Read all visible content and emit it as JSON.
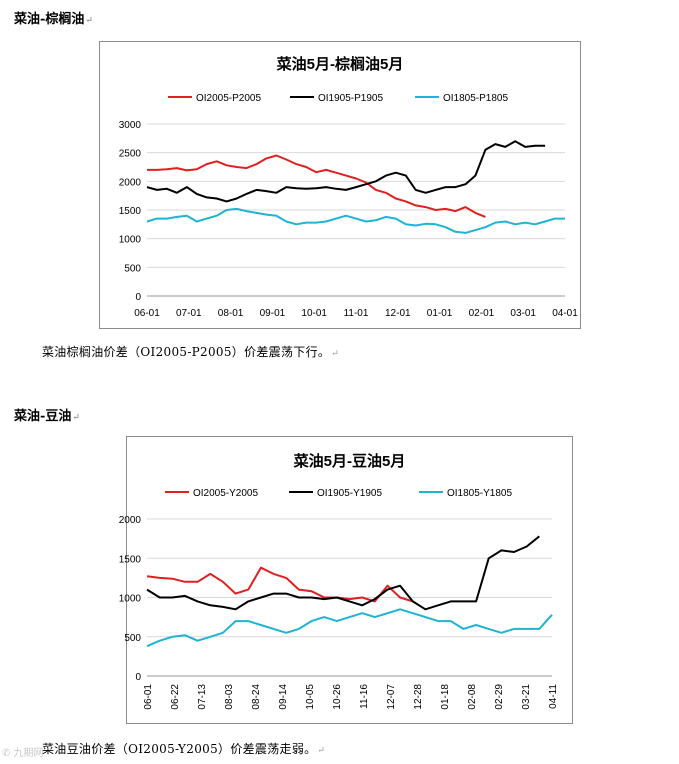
{
  "sections": [
    {
      "heading": "菜油-棕榈油",
      "paragraph": "菜油棕榈油价差（OI2005-P2005）价差震荡下行。"
    },
    {
      "heading": "菜油-豆油",
      "paragraph": "菜油豆油价差（OI2005-Y2005）价差震荡走弱。"
    }
  ],
  "paragraph_mark": "↵",
  "watermark": "✆ 九期网",
  "chart_data": [
    {
      "type": "line",
      "title": "菜油5月-棕榈油5月",
      "ylim": [
        0,
        3000
      ],
      "yticks": [
        0,
        500,
        1000,
        1500,
        2000,
        2500,
        3000
      ],
      "xtick_labels": [
        "06-01",
        "07-01",
        "08-01",
        "09-01",
        "10-01",
        "11-01",
        "12-01",
        "01-01",
        "02-01",
        "03-01",
        "04-01"
      ],
      "x_span": 21,
      "grid": true,
      "legend": "top",
      "series": [
        {
          "name": "OI2005-P2005",
          "color": "#e02020",
          "x": [
            0,
            0.5,
            1,
            1.5,
            2,
            2.5,
            3,
            3.5,
            4,
            4.5,
            5,
            5.5,
            6,
            6.5,
            7,
            7.5,
            8,
            8.5,
            9,
            9.5,
            10,
            10.5,
            11,
            11.5,
            12,
            12.5,
            13,
            13.5,
            14,
            14.5,
            15,
            15.5,
            16,
            16.5,
            17
          ],
          "values": [
            2200,
            2200,
            2210,
            2230,
            2190,
            2210,
            2300,
            2350,
            2280,
            2250,
            2230,
            2300,
            2400,
            2450,
            2380,
            2300,
            2250,
            2160,
            2200,
            2150,
            2100,
            2050,
            1980,
            1850,
            1800,
            1700,
            1650,
            1580,
            1550,
            1500,
            1520,
            1480,
            1550,
            1450,
            1380
          ]
        },
        {
          "name": "OI1905-P1905",
          "color": "#000000",
          "x": [
            0,
            0.5,
            1,
            1.5,
            2,
            2.5,
            3,
            3.5,
            4,
            4.5,
            5,
            5.5,
            6,
            6.5,
            7,
            7.5,
            8,
            8.5,
            9,
            9.5,
            10,
            10.5,
            11,
            11.5,
            12,
            12.5,
            13,
            13.5,
            14,
            14.5,
            15,
            15.5,
            16,
            16.5,
            17,
            17.5,
            18,
            18.5,
            19,
            19.5,
            20
          ],
          "values": [
            1900,
            1850,
            1870,
            1800,
            1900,
            1780,
            1720,
            1700,
            1650,
            1700,
            1780,
            1850,
            1830,
            1800,
            1900,
            1880,
            1870,
            1880,
            1900,
            1870,
            1850,
            1900,
            1950,
            2000,
            2100,
            2150,
            2100,
            1850,
            1800,
            1850,
            1900,
            1900,
            1950,
            2100,
            2550,
            2650,
            2600,
            2700,
            2600,
            2620,
            2620
          ]
        },
        {
          "name": "OI1805-P1805",
          "color": "#1fb3d4",
          "x": [
            0,
            0.5,
            1,
            1.5,
            2,
            2.5,
            3,
            3.5,
            4,
            4.5,
            5,
            5.5,
            6,
            6.5,
            7,
            7.5,
            8,
            8.5,
            9,
            9.5,
            10,
            10.5,
            11,
            11.5,
            12,
            12.5,
            13,
            13.5,
            14,
            14.5,
            15,
            15.5,
            16,
            16.5,
            17,
            17.5,
            18,
            18.5,
            19,
            19.5,
            20,
            20.5,
            21
          ],
          "values": [
            1300,
            1350,
            1350,
            1380,
            1400,
            1300,
            1350,
            1400,
            1500,
            1520,
            1480,
            1450,
            1420,
            1400,
            1300,
            1250,
            1280,
            1280,
            1300,
            1350,
            1400,
            1350,
            1300,
            1320,
            1380,
            1350,
            1250,
            1230,
            1260,
            1250,
            1200,
            1120,
            1100,
            1150,
            1200,
            1280,
            1300,
            1250,
            1280,
            1250,
            1300,
            1350,
            1350
          ]
        }
      ]
    },
    {
      "type": "line",
      "title": "菜油5月-豆油5月",
      "ylim": [
        0,
        2000
      ],
      "yticks": [
        0,
        500,
        1000,
        1500,
        2000
      ],
      "xtick_labels": [
        "06-01",
        "06-22",
        "07-13",
        "08-03",
        "08-24",
        "09-14",
        "10-05",
        "10-26",
        "11-16",
        "12-07",
        "12-28",
        "01-18",
        "02-08",
        "02-29",
        "03-21",
        "04-11"
      ],
      "x_span": 16,
      "grid": true,
      "legend": "top",
      "series": [
        {
          "name": "OI2005-Y2005",
          "color": "#e02020",
          "x": [
            0,
            0.5,
            1,
            1.5,
            2,
            2.5,
            3,
            3.5,
            4,
            4.5,
            5,
            5.5,
            6,
            6.5,
            7,
            7.5,
            8,
            8.5,
            9,
            9.5,
            10,
            10.5
          ],
          "values": [
            1270,
            1250,
            1240,
            1200,
            1200,
            1300,
            1200,
            1050,
            1100,
            1380,
            1300,
            1250,
            1100,
            1080,
            1000,
            1000,
            980,
            1000,
            950,
            1150,
            1000,
            950
          ]
        },
        {
          "name": "OI1905-Y1905",
          "color": "#000000",
          "x": [
            0,
            0.5,
            1,
            1.5,
            2,
            2.5,
            3,
            3.5,
            4,
            4.5,
            5,
            5.5,
            6,
            6.5,
            7,
            7.5,
            8,
            8.5,
            9,
            9.5,
            10,
            10.5,
            11,
            11.5,
            12,
            12.5,
            13,
            13.5,
            14,
            14.5,
            15,
            15.5
          ],
          "values": [
            1100,
            1000,
            1000,
            1020,
            950,
            900,
            880,
            850,
            950,
            1000,
            1050,
            1050,
            1000,
            1000,
            980,
            1000,
            950,
            900,
            980,
            1100,
            1150,
            950,
            850,
            900,
            950,
            950,
            950,
            1500,
            1600,
            1580,
            1650,
            1780
          ]
        },
        {
          "name": "OI1805-Y1805",
          "color": "#1fb3d4",
          "x": [
            0,
            0.5,
            1,
            1.5,
            2,
            2.5,
            3,
            3.5,
            4,
            4.5,
            5,
            5.5,
            6,
            6.5,
            7,
            7.5,
            8,
            8.5,
            9,
            9.5,
            10,
            10.5,
            11,
            11.5,
            12,
            12.5,
            13,
            13.5,
            14,
            14.5,
            15,
            15.5,
            16
          ],
          "values": [
            380,
            450,
            500,
            520,
            450,
            500,
            550,
            700,
            700,
            650,
            600,
            550,
            600,
            700,
            750,
            700,
            750,
            800,
            750,
            800,
            850,
            800,
            750,
            700,
            700,
            600,
            650,
            600,
            550,
            600,
            600,
            600,
            780
          ]
        }
      ]
    }
  ]
}
